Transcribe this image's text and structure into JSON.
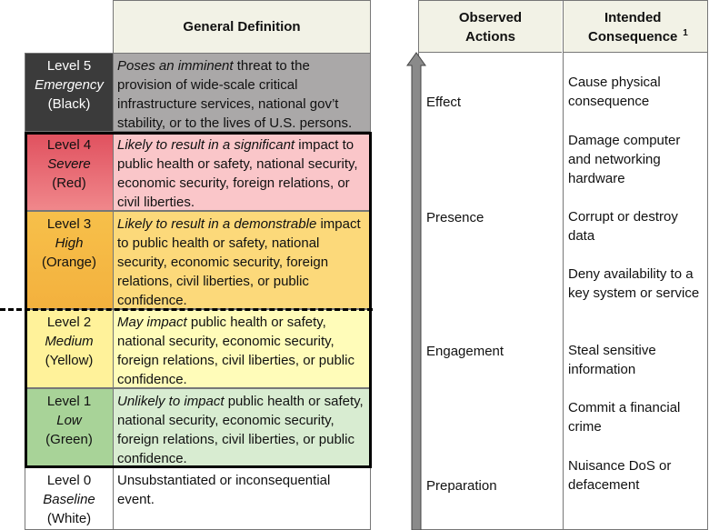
{
  "severity_table": {
    "header": "General Definition",
    "rows": [
      {
        "level": "Level 5",
        "name": "Emergency",
        "color": "(Black)",
        "definition": {
          "italic": "Poses an imminent",
          "rest": " threat to the provision of wide-scale critical infrastructure services, national gov’t stability, or to the lives of U.S. persons."
        }
      },
      {
        "level": "Level 4",
        "name": "Severe",
        "color": "(Red)",
        "definition": {
          "italic": "Likely to result in a significant",
          "rest": " impact to public health or safety, national security, economic security, foreign relations, or civil liberties."
        }
      },
      {
        "level": "Level 3",
        "name": "High",
        "color": "(Orange)",
        "definition": {
          "italic": "Likely to result in a demonstrable",
          "rest": " impact to public health or safety, national security, economic security, foreign relations, civil liberties, or public confidence."
        }
      },
      {
        "level": "Level 2",
        "name": "Medium",
        "color": "(Yellow)",
        "definition": {
          "italic": "May impact",
          "rest": " public health or safety, national security, economic security, foreign relations, civil liberties, or public confidence."
        }
      },
      {
        "level": "Level 1",
        "name": "Low",
        "color": "(Green)",
        "definition": {
          "italic": "Unlikely to impact",
          "rest": " public health or safety, national security, economic security, foreign relations, civil liberties, or public confidence."
        }
      },
      {
        "level": "Level 0",
        "name": "Baseline",
        "color": "(White)",
        "definition": {
          "rest": "Unsubstantiated or inconsequential event."
        }
      }
    ]
  },
  "actions_table": {
    "header_actions": "Observed Actions",
    "header_consequence": "Intended Consequence",
    "header_footnote": "1",
    "observed_actions": [
      "Effect",
      "Presence",
      "Engagement",
      "Preparation"
    ],
    "consequences": [
      "Cause physical consequence",
      "Damage computer and networking hardware",
      "Corrupt or destroy data",
      "Deny availability to a key system or service",
      "Steal sensitive information",
      "Commit a financial crime",
      "Nuisance DoS or defacement"
    ]
  }
}
